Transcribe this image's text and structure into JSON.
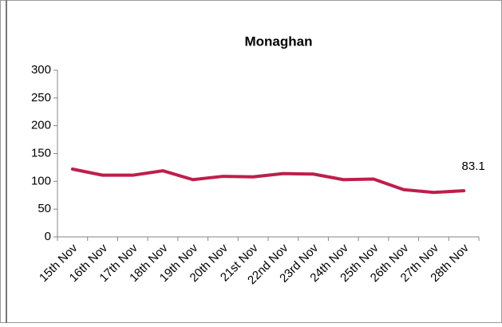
{
  "chart_data": {
    "type": "line",
    "title": "Monaghan",
    "categories": [
      "15th Nov",
      "16th Nov",
      "17th Nov",
      "18th Nov",
      "19th Nov",
      "20th Nov",
      "21st Nov",
      "22nd Nov",
      "23rd Nov",
      "24th Nov",
      "25th Nov",
      "26th Nov",
      "27th Nov",
      "28th Nov"
    ],
    "values": [
      122,
      111,
      111,
      119,
      103,
      109,
      108,
      114,
      113,
      103,
      104,
      85,
      80,
      83.1
    ],
    "labeled_point": 13,
    "color": "#be1e4b",
    "ylim": [
      0,
      300
    ],
    "yticks": [
      0,
      50,
      100,
      150,
      200,
      250,
      300
    ],
    "grid": false
  }
}
